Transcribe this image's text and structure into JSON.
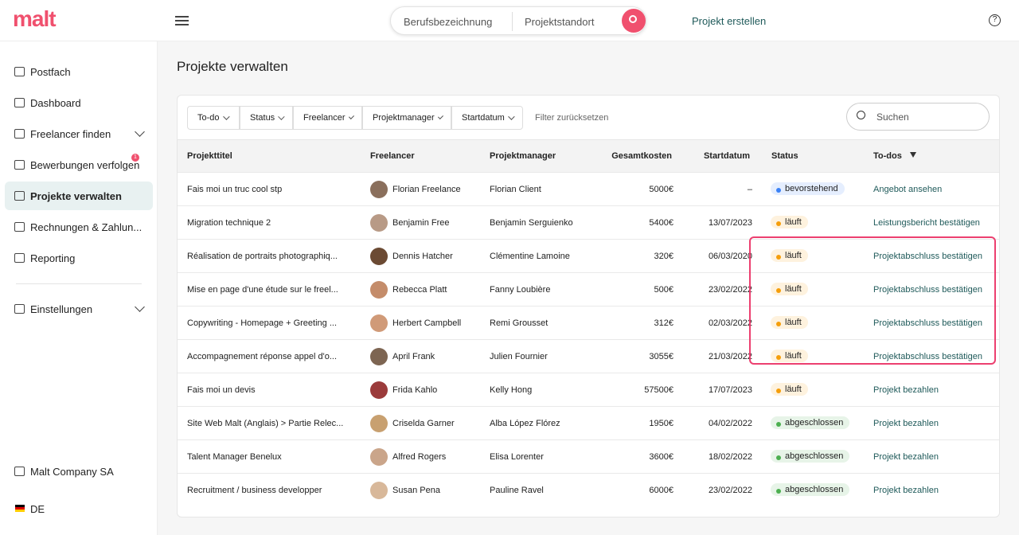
{
  "header": {
    "logo": "malt",
    "search_job": "Berufsbezeichnung",
    "search_location": "Projektstandort",
    "create_project": "Projekt erstellen"
  },
  "sidebar": {
    "items": [
      "Postfach",
      "Dashboard",
      "Freelancer finden",
      "Bewerbungen verfolgen",
      "Projekte verwalten",
      "Rechnungen & Zahlun...",
      "Reporting",
      "Einstellungen"
    ],
    "badge": "1",
    "company": "Malt Company SA",
    "language": "DE"
  },
  "page": {
    "title": "Projekte verwalten",
    "filters": [
      "To-do",
      "Status",
      "Freelancer",
      "Projektmanager",
      "Startdatum"
    ],
    "reset": "Filter zurücksetzen",
    "search": "Suchen"
  },
  "table": {
    "columns": [
      "Projekttitel",
      "Freelancer",
      "Projektmanager",
      "Gesamtkosten",
      "Startdatum",
      "Status",
      "To-dos"
    ],
    "rows": [
      {
        "title": "Fais moi un truc cool stp",
        "freelancer": "Florian Freelance",
        "manager": "Florian Client",
        "cost": "5000€",
        "start": "–",
        "status": "bevorstehend",
        "status_color": "#3b82f6",
        "todo": "Angebot ansehen"
      },
      {
        "title": "Migration technique 2",
        "freelancer": "Benjamin Free",
        "manager": "Benjamin Serguienko",
        "cost": "5400€",
        "start": "13/07/2023",
        "status": "läuft",
        "status_color": "#f59e0b",
        "todo": "Leistungsbericht bestätigen"
      },
      {
        "title": "Réalisation de portraits photographiq...",
        "freelancer": "Dennis Hatcher",
        "manager": "Clémentine Lamoine",
        "cost": "320€",
        "start": "06/03/2020",
        "status": "läuft",
        "status_color": "#f59e0b",
        "todo": "Projektabschluss bestätigen"
      },
      {
        "title": "Mise en page d'une étude sur le freel...",
        "freelancer": "Rebecca Platt",
        "manager": "Fanny Loubière",
        "cost": "500€",
        "start": "23/02/2022",
        "status": "läuft",
        "status_color": "#f59e0b",
        "todo": "Projektabschluss bestätigen"
      },
      {
        "title": "Copywriting - Homepage + Greeting ...",
        "freelancer": "Herbert Campbell",
        "manager": "Remi Grousset",
        "cost": "312€",
        "start": "02/03/2022",
        "status": "läuft",
        "status_color": "#f59e0b",
        "todo": "Projektabschluss bestätigen"
      },
      {
        "title": "Accompagnement réponse appel d'o...",
        "freelancer": "April Frank",
        "manager": "Julien Fournier",
        "cost": "3055€",
        "start": "21/03/2022",
        "status": "läuft",
        "status_color": "#f59e0b",
        "todo": "Projektabschluss bestätigen"
      },
      {
        "title": "Fais moi un devis",
        "freelancer": "Frida Kahlo",
        "manager": "Kelly Hong",
        "cost": "57500€",
        "start": "17/07/2023",
        "status": "läuft",
        "status_color": "#f59e0b",
        "todo": "Projekt bezahlen"
      },
      {
        "title": "Site Web Malt (Anglais) > Partie Relec...",
        "freelancer": "Criselda Garner",
        "manager": "Alba López Flórez",
        "cost": "1950€",
        "start": "04/02/2022",
        "status": "abgeschlossen",
        "status_color": "#4caf50",
        "todo": "Projekt bezahlen"
      },
      {
        "title": "Talent Manager Benelux",
        "freelancer": "Alfred Rogers",
        "manager": "Elisa Lorenter",
        "cost": "3600€",
        "start": "18/02/2022",
        "status": "abgeschlossen",
        "status_color": "#4caf50",
        "todo": "Projekt bezahlen"
      },
      {
        "title": "Recruitment / business developper",
        "freelancer": "Susan Pena",
        "manager": "Pauline Ravel",
        "cost": "6000€",
        "start": "23/02/2022",
        "status": "abgeschlossen",
        "status_color": "#4caf50",
        "todo": "Projekt bezahlen"
      }
    ]
  }
}
